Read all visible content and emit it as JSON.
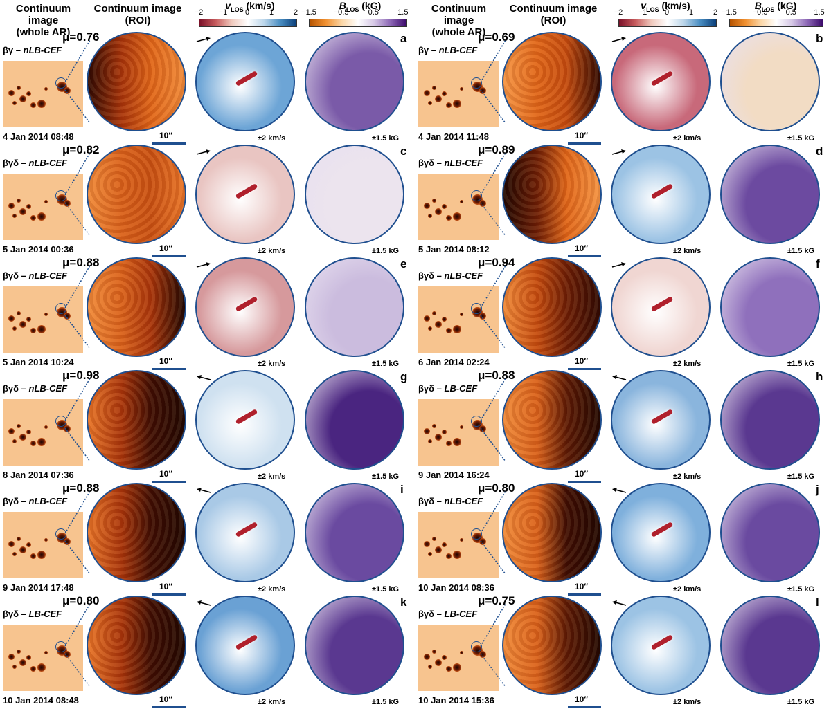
{
  "headers": {
    "whole_ar": "Continuum image\n(whole AR)",
    "roi": "Continuum image\n(ROI)",
    "vlos_var": "v",
    "vlos_sub": "LOS",
    "vlos_unit": " (km/s)",
    "blos_var": "B",
    "blos_sub": "LOS",
    "blos_unit": " (kG)"
  },
  "colorbars": {
    "vlos": {
      "ticks": [
        "−2",
        "−1",
        "0",
        "1",
        "2"
      ],
      "colors": [
        "#7b1129",
        "#ffffff",
        "#0b3f7a"
      ]
    },
    "blos": {
      "ticks": [
        "−1.5",
        "−0.5",
        "0.5",
        "1.5"
      ],
      "colors": [
        "#b55300",
        "#ffffff",
        "#3c0a6b"
      ]
    }
  },
  "scale_label": "10′′",
  "vlos_range": "±2 km/s",
  "blos_range": "±1.5 kG",
  "panels": [
    {
      "letter": "a",
      "mu": "μ=0.76",
      "cls_pre": "βγ – ",
      "cls_it": "nLB-CEF",
      "date": "4 Jan 2014 08:48",
      "arrow": "right",
      "cont": [
        "#2a0702",
        "#a7330a",
        "#e06518",
        "#f08a3a"
      ],
      "vlos": "#6da5d6",
      "blos": "#7a5aa8"
    },
    {
      "letter": "b",
      "mu": "μ=0.69",
      "cls_pre": "βγ – ",
      "cls_it": "nLB-CEF",
      "date": "4 Jan 2014 11:48",
      "arrow": "right",
      "cont": [
        "#f59545",
        "#e06518",
        "#c44a0e",
        "#2a0702"
      ],
      "vlos": "#c8697a",
      "blos": "#f2dcc4"
    },
    {
      "letter": "c",
      "mu": "μ=0.82",
      "cls_pre": "βγδ – ",
      "cls_it": "nLB-CEF",
      "date": "5 Jan 2014 00:36",
      "arrow": "right",
      "cont": [
        "#f08a3a",
        "#d9601a",
        "#c95012",
        "#e87428"
      ],
      "vlos": "#e9c5c2",
      "blos": "#ece4ee"
    },
    {
      "letter": "d",
      "mu": "μ=0.89",
      "cls_pre": "βγδ – ",
      "cls_it": "nLB-CEF",
      "date": "5 Jan 2014 08:12",
      "arrow": "right",
      "cont": [
        "#1b0501",
        "#6a1c05",
        "#e06518",
        "#f59545"
      ],
      "vlos": "#9cc3e4",
      "blos": "#6c4aa0"
    },
    {
      "letter": "e",
      "mu": "μ=0.88",
      "cls_pre": "βγδ – ",
      "cls_it": "nLB-CEF",
      "date": "5 Jan 2014 10:24",
      "arrow": "right",
      "cont": [
        "#f08a3a",
        "#d9601a",
        "#a7330a",
        "#1b0501"
      ],
      "vlos": "#d6999c",
      "blos": "#cbbcde"
    },
    {
      "letter": "f",
      "mu": "μ=0.94",
      "cls_pre": "βγδ – ",
      "cls_it": "nLB-CEF",
      "date": "6 Jan 2014 02:24",
      "arrow": "right",
      "cont": [
        "#f08a3a",
        "#c44a0e",
        "#6a1c05",
        "#2a0702"
      ],
      "vlos": "#f0d6d2",
      "blos": "#8f70bc"
    },
    {
      "letter": "g",
      "mu": "μ=0.98",
      "cls_pre": "βγδ – ",
      "cls_it": "nLB-CEF",
      "date": "8 Jan 2014 07:36",
      "arrow": "left",
      "cont": [
        "#e87428",
        "#a7330a",
        "#3a0b02",
        "#1b0501"
      ],
      "vlos": "#cfe1f0",
      "blos": "#4a2580"
    },
    {
      "letter": "h",
      "mu": "μ=0.88",
      "cls_pre": "βγδ – ",
      "cls_it": "LB-CEF",
      "date": "9 Jan 2014 16:24",
      "arrow": "left",
      "cont": [
        "#f08a3a",
        "#d9601a",
        "#5a1804",
        "#1b0501"
      ],
      "vlos": "#8ab5dd",
      "blos": "#5a3890"
    },
    {
      "letter": "i",
      "mu": "μ=0.88",
      "cls_pre": "βγδ – ",
      "cls_it": "nLB-CEF",
      "date": "9 Jan 2014 17:48",
      "arrow": "left",
      "cont": [
        "#e87428",
        "#a7330a",
        "#3a0b02",
        "#1b0501"
      ],
      "vlos": "#a9c9e6",
      "blos": "#6a4aa0"
    },
    {
      "letter": "j",
      "mu": "μ=0.80",
      "cls_pre": "βγδ – ",
      "cls_it": "nLB-CEF",
      "date": "10 Jan 2014 08:36",
      "arrow": "left",
      "cont": [
        "#f08a3a",
        "#d9601a",
        "#3a0b02",
        "#1b0501"
      ],
      "vlos": "#7fb0dc",
      "blos": "#6a4aa0"
    },
    {
      "letter": "k",
      "mu": "μ=0.80",
      "cls_pre": "βγδ – ",
      "cls_it": "LB-CEF",
      "date": "10 Jan 2014 08:48",
      "arrow": "left",
      "cont": [
        "#e87428",
        "#a7330a",
        "#3a0b02",
        "#1b0501"
      ],
      "vlos": "#6aa1d4",
      "blos": "#5a3890"
    },
    {
      "letter": "l",
      "mu": "μ=0.75",
      "cls_pre": "βγδ – ",
      "cls_it": "LB-CEF",
      "date": "10 Jan 2014 15:36",
      "arrow": "left",
      "cont": [
        "#f08a3a",
        "#d9601a",
        "#5a1804",
        "#1b0501"
      ],
      "vlos": "#9cc3e4",
      "blos": "#5a3890"
    }
  ]
}
